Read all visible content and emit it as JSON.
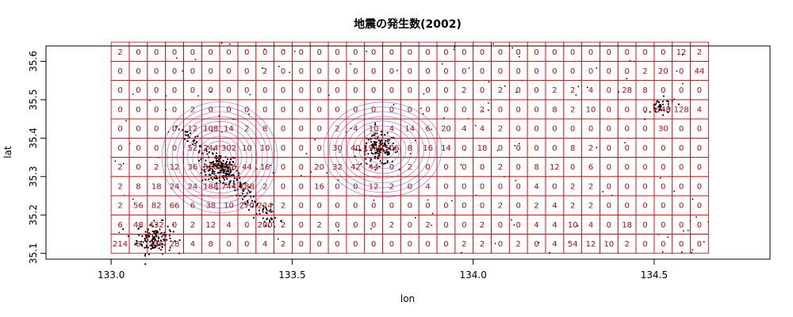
{
  "chart_data": {
    "type": "heatmap",
    "title": "地震の発生数(2002)",
    "xlabel": "lon",
    "ylabel": "lat",
    "xlim": [
      132.82,
      134.82
    ],
    "ylim": [
      35.085,
      35.64
    ],
    "x_ticks": [
      133.0,
      133.5,
      134.0,
      134.5
    ],
    "x_tick_labels": [
      "133.0",
      "133.5",
      "134.0",
      "134.5"
    ],
    "y_ticks": [
      35.1,
      35.2,
      35.3,
      35.4,
      35.5,
      35.6
    ],
    "y_tick_labels": [
      "35.1",
      "35.2",
      "35.3",
      "35.4",
      "35.5",
      "35.6"
    ],
    "grid": {
      "lon_min": 133.0,
      "lon_max": 134.65,
      "lat_min": 35.1,
      "lat_max": 35.65,
      "cols": 33,
      "rows": 11
    },
    "cell_counts": [
      [
        "2",
        "0",
        "0",
        "0",
        "0",
        "0",
        "0",
        "0",
        "0",
        "0",
        "0",
        "0",
        "0",
        "0",
        "0",
        "0",
        "0",
        "0",
        "0",
        "0",
        "0",
        "0",
        "0",
        "0",
        "0",
        "0",
        "0",
        "0",
        "0",
        "0",
        "0",
        "12",
        "2"
      ],
      [
        "0",
        "0",
        "0",
        "0",
        "0",
        "0",
        "0",
        "0",
        "2",
        "0",
        "0",
        "0",
        "0",
        "0",
        "0",
        "0",
        "0",
        "0",
        "0",
        "0",
        "0",
        "0",
        "0",
        "0",
        "0",
        "0",
        "0",
        "0",
        "0",
        "2",
        "20",
        "0",
        "44"
      ],
      [
        "0",
        "0",
        "0",
        "0",
        "0",
        "0",
        "0",
        "0",
        "0",
        "0",
        "0",
        "0",
        "0",
        "0",
        "0",
        "0",
        "0",
        "0",
        "0",
        "2",
        "0",
        "2",
        "0",
        "0",
        "2",
        "2",
        "4",
        "0",
        "28",
        "8",
        "0",
        "0",
        "0"
      ],
      [
        "0",
        "0",
        "0",
        "0",
        "2",
        "0",
        "0",
        "0",
        "0",
        "0",
        "0",
        "0",
        "0",
        "0",
        "0",
        "0",
        "0",
        "0",
        "0",
        "0",
        "2",
        "0",
        "0",
        "0",
        "8",
        "2",
        "10",
        "0",
        "0",
        "0",
        "148",
        "128",
        "4"
      ],
      [
        "0",
        "0",
        "0",
        "0",
        "12",
        "108",
        "14",
        "2",
        "8",
        "0",
        "0",
        "0",
        "2",
        "4",
        "10",
        "4",
        "14",
        "6",
        "20",
        "4",
        "4",
        "2",
        "0",
        "0",
        "0",
        "0",
        "0",
        "0",
        "0",
        "0",
        "30",
        "0",
        "0"
      ],
      [
        "0",
        "0",
        "0",
        "0",
        "52",
        "244",
        "302",
        "10",
        "10",
        "0",
        "0",
        "0",
        "30",
        "40",
        "1918",
        "506",
        "8",
        "16",
        "14",
        "0",
        "18",
        "0",
        "0",
        "0",
        "0",
        "8",
        "2",
        "0",
        "0",
        "0",
        "0",
        "0",
        "0"
      ],
      [
        "2",
        "0",
        "2",
        "12",
        "36",
        "360",
        "736",
        "44",
        "16",
        "0",
        "0",
        "20",
        "32",
        "42",
        "44",
        "0",
        "2",
        "0",
        "0",
        "0",
        "0",
        "2",
        "0",
        "8",
        "12",
        "0",
        "6",
        "0",
        "0",
        "0",
        "0",
        "0",
        "0"
      ],
      [
        "2",
        "8",
        "18",
        "24",
        "24",
        "188",
        "744",
        "188",
        "2",
        "0",
        "0",
        "16",
        "0",
        "0",
        "12",
        "2",
        "0",
        "4",
        "0",
        "0",
        "0",
        "0",
        "0",
        "4",
        "0",
        "2",
        "2",
        "0",
        "0",
        "0",
        "0",
        "0",
        "0"
      ],
      [
        "2",
        "56",
        "82",
        "66",
        "6",
        "38",
        "10",
        "270",
        "224",
        "2",
        "0",
        "0",
        "0",
        "0",
        "0",
        "0",
        "0",
        "0",
        "0",
        "0",
        "0",
        "2",
        "0",
        "2",
        "4",
        "2",
        "2",
        "0",
        "0",
        "0",
        "0",
        "0",
        "0"
      ],
      [
        "6",
        "48",
        "432",
        "0",
        "2",
        "12",
        "4",
        "0",
        "200",
        "2",
        "0",
        "2",
        "0",
        "0",
        "0",
        "2",
        "0",
        "2",
        "0",
        "0",
        "2",
        "0",
        "0",
        "4",
        "4",
        "10",
        "4",
        "0",
        "18",
        "0",
        "0",
        "0",
        "0"
      ],
      [
        "214",
        "8",
        "336",
        "28",
        "4",
        "8",
        "0",
        "0",
        "4",
        "2",
        "0",
        "0",
        "0",
        "0",
        "0",
        "0",
        "0",
        "0",
        "0",
        "2",
        "2",
        "0",
        "2",
        "0",
        "4",
        "54",
        "12",
        "10",
        "2",
        "0",
        "0",
        "0",
        "0"
      ]
    ],
    "contour_centers": [
      {
        "lon": 133.3,
        "lat": 35.35
      },
      {
        "lon": 133.75,
        "lat": 35.37
      }
    ],
    "hotspots": [
      {
        "lon": 133.3,
        "lat": 35.32,
        "intensity": "high"
      },
      {
        "lon": 133.12,
        "lat": 35.14,
        "intensity": "high"
      },
      {
        "lon": 133.74,
        "lat": 35.37,
        "intensity": "high"
      },
      {
        "lon": 134.52,
        "lat": 35.48,
        "intensity": "medium"
      }
    ],
    "colors": {
      "grid": "#e00000",
      "cell_text": "#d00000",
      "contour": "#7070ff",
      "points": "#000000",
      "axis": "#000000"
    }
  }
}
